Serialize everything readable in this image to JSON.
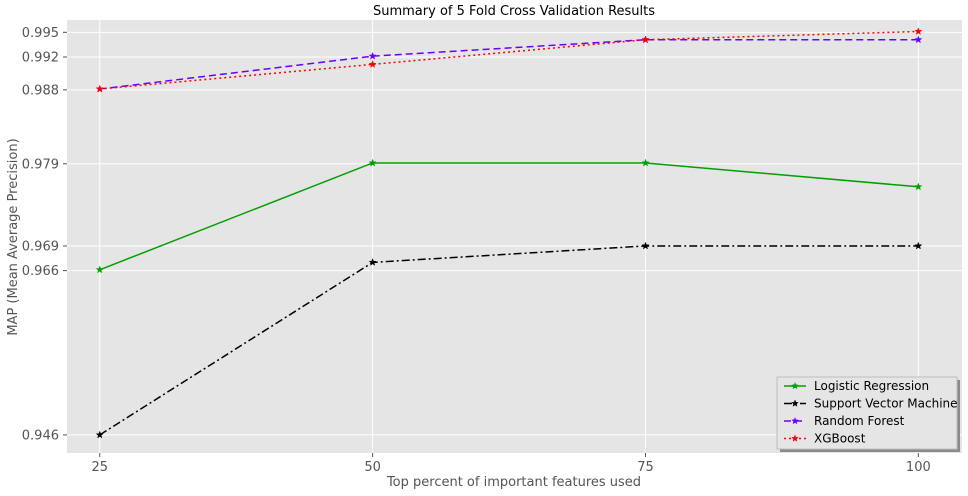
{
  "chart_data": {
    "type": "line",
    "title": "Summary of 5 Fold Cross Validation Results",
    "xlabel": "Top percent of important features used",
    "ylabel": "MAP (Mean Average Precision)",
    "x": [
      25,
      50,
      75,
      100
    ],
    "x_tick_labels": [
      "25",
      "50",
      "75",
      "100"
    ],
    "y_ticks": [
      0.946,
      0.966,
      0.969,
      0.979,
      0.988,
      0.992,
      0.995
    ],
    "y_tick_labels": [
      "0.946",
      "0.966",
      "0.969",
      "0.979",
      "0.988",
      "0.992",
      "0.995"
    ],
    "xlim": [
      22,
      104
    ],
    "ylim": [
      0.9438,
      0.9965
    ],
    "grid": true,
    "legend_position": "lower-right",
    "series": [
      {
        "name": "Logistic Regression",
        "color": "#00a000",
        "dash": "solid",
        "marker": "star",
        "values": [
          0.9661,
          0.9791,
          0.9791,
          0.9762
        ]
      },
      {
        "name": "Support Vector Machine",
        "color": "#000000",
        "dash": "dashdot",
        "marker": "star",
        "values": [
          0.946,
          0.967,
          0.969,
          0.969
        ]
      },
      {
        "name": "Random Forest",
        "color": "#6a00ff",
        "dash": "dashed",
        "marker": "star",
        "values": [
          0.9881,
          0.9921,
          0.9941,
          0.9941
        ]
      },
      {
        "name": "XGBoost",
        "color": "#ff0000",
        "dash": "dotted",
        "marker": "star",
        "values": [
          0.9881,
          0.9911,
          0.9941,
          0.9951
        ]
      }
    ]
  }
}
